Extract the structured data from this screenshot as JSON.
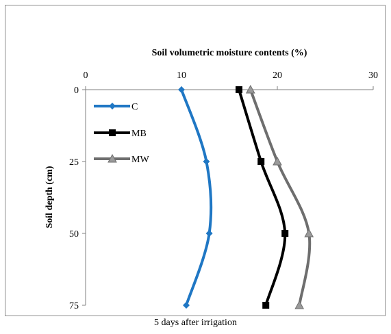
{
  "chart_data": {
    "type": "line",
    "title": "Soil volumetric moisture  contents (%)",
    "xlabel": "Soil volumetric moisture  contents (%)",
    "ylabel": "Soil depth (cm)",
    "caption": "5 days after irrigation",
    "xlim": [
      0,
      30
    ],
    "ylim": [
      0,
      75
    ],
    "x_ticks": [
      0,
      10,
      20,
      30
    ],
    "y_ticks": [
      0,
      25,
      50,
      75
    ],
    "y_inverted": true,
    "x_axis_position": "top",
    "grid": false,
    "legend_position": "top-left",
    "series": [
      {
        "name": "C",
        "color": "#1f77c4",
        "marker": "diamond",
        "points": [
          [
            10.0,
            0
          ],
          [
            12.6,
            25
          ],
          [
            12.9,
            50
          ],
          [
            10.5,
            75
          ]
        ]
      },
      {
        "name": "MB",
        "color": "#000000",
        "marker": "square",
        "points": [
          [
            16.0,
            0
          ],
          [
            18.3,
            25
          ],
          [
            20.8,
            50
          ],
          [
            18.8,
            75
          ]
        ]
      },
      {
        "name": "MW",
        "color": "#6e6e6e",
        "marker": "triangle",
        "points": [
          [
            17.2,
            0
          ],
          [
            20.0,
            25
          ],
          [
            23.3,
            50
          ],
          [
            22.3,
            75
          ]
        ]
      }
    ]
  }
}
